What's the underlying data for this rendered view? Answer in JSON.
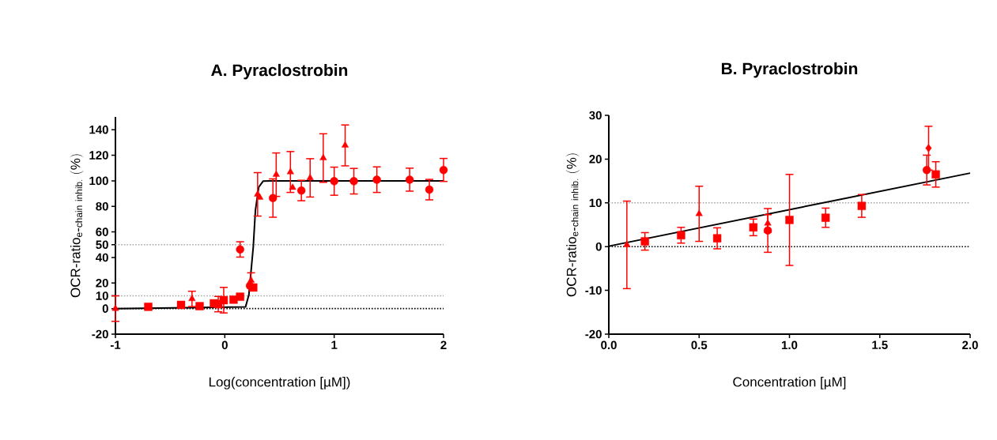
{
  "chart_data": [
    {
      "type": "scatter",
      "title": "A. Pyraclostrobin",
      "xlabel": "Log(concentration [µM])",
      "ylabel": "\\mathrm{OCR\\mbox{-}ratio}_{\\mathrm{e\\mbox{-}chain\\ inhib.}}\\ \\mathrm{(\\%)}",
      "xlim": [
        -1,
        2
      ],
      "xticks": [
        -1,
        0,
        1,
        2
      ],
      "ylim": [
        -20,
        150
      ],
      "yticks": [
        -20,
        0,
        10,
        20,
        40,
        50,
        60,
        80,
        100,
        120,
        140
      ],
      "ref_lines": [
        {
          "axis": "y",
          "value": 0,
          "color": "#000000",
          "line_style": "dotted"
        },
        {
          "axis": "y",
          "value": 10,
          "color": "#a6a6a6",
          "line_style": "dotted"
        },
        {
          "axis": "y",
          "value": 50,
          "color": "#a6a6a6",
          "line_style": "dotted"
        }
      ],
      "series": [
        {
          "color": "#ff0000",
          "marker": "square",
          "x": [
            -0.7,
            -0.4,
            -0.23,
            -0.1,
            -0.06,
            -0.01,
            0.08,
            0.14,
            0.26
          ],
          "values": [
            1.4,
            2.9,
            1.9,
            4.1,
            3.5,
            6.6,
            7.0,
            9.3,
            16.5
          ],
          "errors": [
            null,
            null,
            null,
            null,
            6,
            10,
            null,
            null,
            null
          ]
        },
        {
          "color": "#ff0000",
          "marker": "triangle",
          "x": [
            -1,
            -0.3,
            0.24,
            0.3,
            0.47,
            0.6,
            0.78,
            0.9,
            1.1
          ],
          "values": [
            0,
            7.6,
            22,
            89.4,
            104.8,
            106.9,
            102.3,
            117.8,
            127.7
          ],
          "errors": [
            10,
            6,
            6,
            17,
            17,
            16,
            15,
            19,
            16
          ]
        },
        {
          "color": "#ff0000",
          "marker": "triangle-down",
          "x": [
            0.32,
            0.62
          ],
          "values": [
            86.9,
            94.7
          ],
          "errors": [
            null,
            null
          ]
        },
        {
          "color": "#ff0000",
          "marker": "circle",
          "x": [
            0.14,
            0.23,
            0.44,
            0.7,
            1.0,
            1.18,
            1.39,
            1.69,
            1.87,
            2.0
          ],
          "values": [
            46.3,
            17.9,
            86.5,
            92.4,
            99.7,
            99.7,
            100.9,
            100.9,
            93.1,
            108.5
          ],
          "errors": [
            6,
            null,
            15,
            8,
            11,
            10,
            10,
            9,
            8,
            9
          ]
        },
        {
          "type": "line",
          "color": "#000000",
          "marker": "none",
          "x": [
            -1,
            0.19,
            0.22,
            0.26,
            0.28,
            0.31,
            0.35,
            0.42,
            2
          ],
          "values": [
            0,
            1.4,
            10.7,
            48,
            77,
            95,
            99.7,
            100,
            100
          ]
        }
      ]
    },
    {
      "type": "scatter",
      "title": "B. Pyraclostrobin",
      "xlabel": "Concentration [µM]",
      "ylabel": "\\mathrm{OCR\\mbox{-}ratio}_{\\mathrm{e\\mbox{-}chain\\ inhib.}}\\ \\mathrm{(\\%)}",
      "xlim": [
        0,
        2
      ],
      "xticks": [
        {
          "value": 0,
          "label": "0.0"
        },
        {
          "value": 0.5,
          "label": "0.5"
        },
        {
          "value": 1,
          "label": "1.0"
        },
        {
          "value": 1.5,
          "label": "1.5"
        },
        {
          "value": 2,
          "label": "2.0"
        }
      ],
      "ylim": [
        -20,
        30
      ],
      "yticks": [
        -20,
        -10,
        0,
        10,
        20,
        30
      ],
      "ref_lines": [
        {
          "axis": "y",
          "value": 0,
          "color": "#000000",
          "line_style": "dotted"
        },
        {
          "axis": "y",
          "value": 10,
          "color": "#a6a6a6",
          "line_style": "dotted"
        }
      ],
      "series": [
        {
          "color": "#ff0000",
          "marker": "square",
          "x": [
            0.2,
            0.4,
            0.6,
            0.8,
            1.0,
            1.2,
            1.4,
            1.81
          ],
          "values": [
            1.2,
            2.6,
            1.9,
            4.4,
            6.1,
            6.6,
            9.3,
            16.5
          ],
          "errors": [
            2,
            1.8,
            2.4,
            1.9,
            10.4,
            2.2,
            2.6,
            2.9
          ]
        },
        {
          "color": "#ff0000",
          "marker": "triangle",
          "x": [
            0.1,
            0.5,
            0.88
          ],
          "values": [
            0.4,
            7.5,
            5.3
          ],
          "errors": [
            10,
            6.3,
            2
          ]
        },
        {
          "color": "#ff0000",
          "marker": "circle",
          "x": [
            0.88,
            1.76
          ],
          "values": [
            3.7,
            17.5
          ],
          "errors": [
            5,
            3.4
          ]
        },
        {
          "color": "#ff0000",
          "marker": "diamond",
          "x": [
            1.77
          ],
          "values": [
            22.5
          ],
          "errors": [
            5
          ]
        },
        {
          "type": "line",
          "color": "#000000",
          "marker": "none",
          "x": [
            0,
            2
          ],
          "values": [
            0.1,
            16.8
          ]
        }
      ]
    }
  ]
}
